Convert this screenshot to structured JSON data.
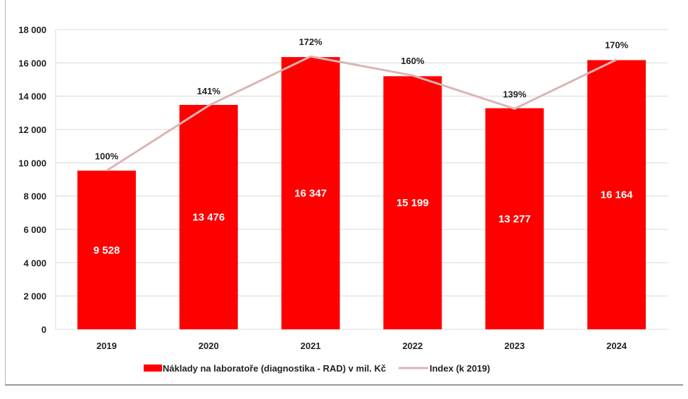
{
  "chart_data": {
    "type": "bar",
    "title": "",
    "xlabel": "",
    "ylabel": "",
    "categories": [
      "2019",
      "2020",
      "2021",
      "2022",
      "2023",
      "2024"
    ],
    "ylim": [
      0,
      18000
    ],
    "yticks": [
      0,
      2000,
      4000,
      6000,
      8000,
      10000,
      12000,
      14000,
      16000,
      18000
    ],
    "ytick_labels": [
      "0",
      "2 000",
      "4 000",
      "6 000",
      "8 000",
      "10 000",
      "12 000",
      "14 000",
      "16 000",
      "18 000"
    ],
    "grid": true,
    "legend_position": "bottom",
    "series": [
      {
        "name": "Náklady na laboratoře (diagnostika - RAD) v mil. Kč",
        "type": "bar",
        "color": "#ff0000",
        "values": [
          9528,
          13476,
          16347,
          15199,
          13277,
          16164
        ],
        "labels": [
          "9 528",
          "13 476",
          "16 347",
          "15 199",
          "13 277",
          "16 164"
        ]
      },
      {
        "name": "Index (k 2019)",
        "type": "line",
        "color": "#dbb4b4",
        "values": [
          100,
          141,
          172,
          160,
          139,
          170
        ],
        "labels": [
          "100%",
          "141%",
          "172%",
          "160%",
          "139%",
          "170%"
        ]
      }
    ]
  }
}
